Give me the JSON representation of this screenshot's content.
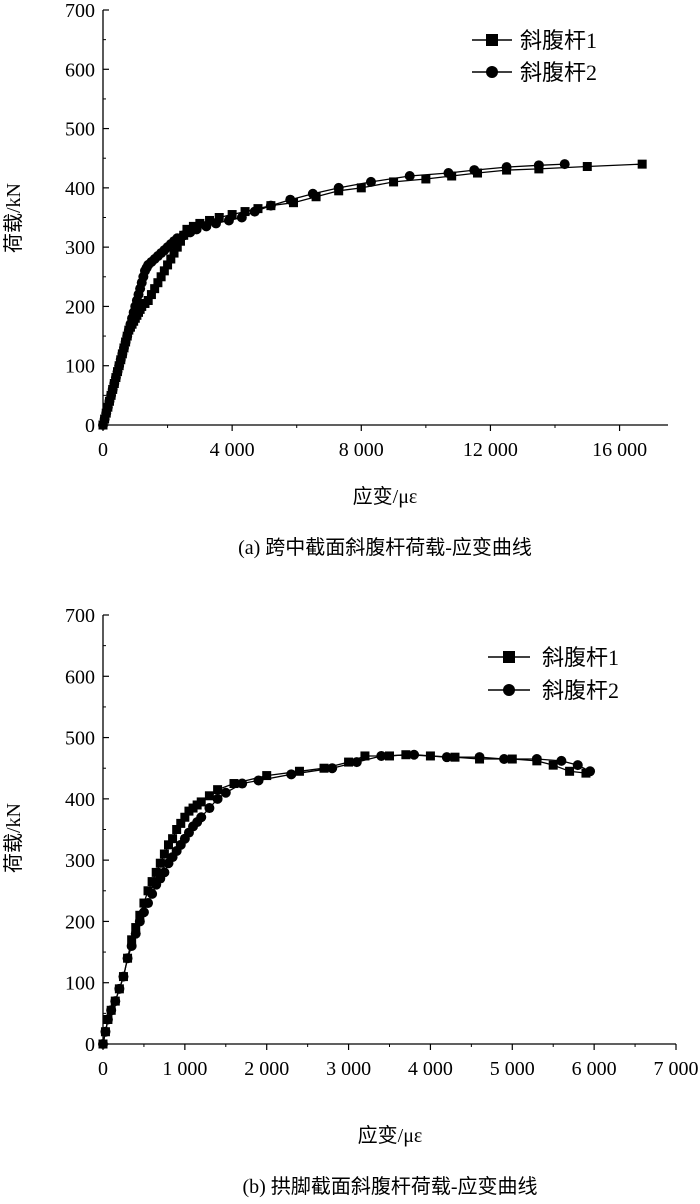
{
  "chart_data": [
    {
      "type": "line",
      "caption": "(a) 跨中截面斜腹杆荷载-应变曲线",
      "xlabel": "应变/με",
      "ylabel": "荷载/kN",
      "xlim": [
        0,
        17500
      ],
      "ylim": [
        0,
        700
      ],
      "xticks": [
        0,
        4000,
        8000,
        12000,
        16000
      ],
      "xtick_labels": [
        "0",
        "4 000",
        "8 000",
        "12 000",
        "16 000"
      ],
      "yticks": [
        0,
        100,
        200,
        300,
        400,
        500,
        600,
        700
      ],
      "ytick_labels": [
        "0",
        "100",
        "200",
        "300",
        "400",
        "500",
        "600",
        "700"
      ],
      "legend_position": "top-right",
      "series": [
        {
          "name": "斜腹杆1",
          "marker": "square",
          "x": [
            0,
            50,
            100,
            150,
            200,
            250,
            300,
            350,
            400,
            450,
            500,
            550,
            600,
            650,
            700,
            750,
            800,
            850,
            900,
            950,
            1000,
            1050,
            1100,
            1150,
            1200,
            1300,
            1400,
            1500,
            1600,
            1700,
            1800,
            1900,
            2000,
            2100,
            2200,
            2300,
            2400,
            2500,
            2600,
            2800,
            3000,
            3300,
            3600,
            4000,
            4400,
            4800,
            5200,
            5900,
            6600,
            7300,
            8000,
            9000,
            10000,
            10800,
            11600,
            12500,
            13500,
            15000,
            16700
          ],
          "y": [
            0,
            10,
            20,
            30,
            40,
            50,
            60,
            70,
            80,
            90,
            100,
            110,
            120,
            130,
            140,
            150,
            160,
            165,
            170,
            175,
            180,
            185,
            190,
            195,
            200,
            205,
            210,
            220,
            230,
            240,
            250,
            260,
            270,
            280,
            290,
            300,
            310,
            320,
            330,
            335,
            340,
            345,
            350,
            355,
            360,
            365,
            370,
            375,
            385,
            395,
            400,
            410,
            415,
            420,
            425,
            430,
            432,
            436,
            440
          ]
        },
        {
          "name": "斜腹杆2",
          "marker": "circle",
          "x": [
            0,
            50,
            100,
            150,
            200,
            250,
            300,
            350,
            400,
            450,
            500,
            550,
            600,
            650,
            700,
            750,
            800,
            850,
            900,
            950,
            1000,
            1050,
            1100,
            1150,
            1200,
            1250,
            1300,
            1350,
            1400,
            1500,
            1600,
            1700,
            1800,
            1900,
            2000,
            2100,
            2200,
            2300,
            2500,
            2700,
            2900,
            3200,
            3500,
            3900,
            4300,
            4700,
            5200,
            5800,
            6500,
            7300,
            8300,
            9500,
            10700,
            11500,
            12500,
            13500,
            14300
          ],
          "y": [
            0,
            10,
            20,
            30,
            40,
            50,
            60,
            70,
            80,
            90,
            100,
            110,
            120,
            130,
            140,
            150,
            160,
            170,
            180,
            190,
            200,
            210,
            220,
            230,
            240,
            250,
            260,
            265,
            270,
            275,
            280,
            285,
            290,
            295,
            300,
            305,
            310,
            315,
            320,
            325,
            330,
            335,
            340,
            345,
            350,
            360,
            370,
            380,
            390,
            400,
            410,
            420,
            425,
            430,
            435,
            438,
            440
          ]
        }
      ]
    },
    {
      "type": "line",
      "caption": "(b) 拱脚截面斜腹杆荷载-应变曲线",
      "xlabel": "应变/με",
      "ylabel": "荷载/kN",
      "xlim": [
        0,
        7000
      ],
      "ylim": [
        0,
        700
      ],
      "xticks": [
        0,
        1000,
        2000,
        3000,
        4000,
        5000,
        6000,
        7000
      ],
      "xtick_labels": [
        "0",
        "1 000",
        "2 000",
        "3 000",
        "4 000",
        "5 000",
        "6 000",
        "7 000"
      ],
      "yticks": [
        0,
        100,
        200,
        300,
        400,
        500,
        600,
        700
      ],
      "ytick_labels": [
        "0",
        "100",
        "200",
        "300",
        "400",
        "500",
        "600",
        "700"
      ],
      "legend_position": "top-right",
      "series": [
        {
          "name": "斜腹杆1",
          "marker": "square",
          "x": [
            0,
            30,
            60,
            100,
            150,
            200,
            250,
            300,
            350,
            400,
            450,
            500,
            550,
            600,
            650,
            700,
            750,
            800,
            850,
            900,
            950,
            1000,
            1050,
            1100,
            1150,
            1200,
            1300,
            1400,
            1600,
            2000,
            2400,
            2700,
            3000,
            3200,
            3500,
            3700,
            4000,
            4300,
            4600,
            5000,
            5300,
            5500,
            5700,
            5900
          ],
          "y": [
            0,
            20,
            40,
            55,
            70,
            90,
            110,
            140,
            170,
            190,
            210,
            230,
            250,
            265,
            280,
            295,
            310,
            325,
            335,
            350,
            360,
            370,
            380,
            385,
            390,
            395,
            405,
            415,
            425,
            438,
            445,
            450,
            460,
            470,
            470,
            472,
            470,
            468,
            465,
            465,
            462,
            455,
            445,
            442
          ]
        },
        {
          "name": "斜腹杆2",
          "marker": "circle",
          "x": [
            0,
            30,
            60,
            100,
            150,
            200,
            250,
            300,
            350,
            400,
            450,
            500,
            550,
            600,
            650,
            700,
            750,
            800,
            850,
            900,
            950,
            1000,
            1050,
            1100,
            1150,
            1200,
            1300,
            1400,
            1500,
            1700,
            1900,
            2300,
            2800,
            3100,
            3400,
            3800,
            4200,
            4600,
            4900,
            5300,
            5600,
            5800,
            5950
          ],
          "y": [
            0,
            20,
            40,
            55,
            70,
            90,
            110,
            140,
            160,
            180,
            200,
            215,
            230,
            245,
            260,
            270,
            280,
            295,
            305,
            315,
            325,
            335,
            345,
            355,
            362,
            370,
            385,
            400,
            410,
            425,
            430,
            440,
            450,
            460,
            470,
            472,
            468,
            468,
            465,
            465,
            462,
            455,
            445
          ]
        }
      ]
    }
  ]
}
